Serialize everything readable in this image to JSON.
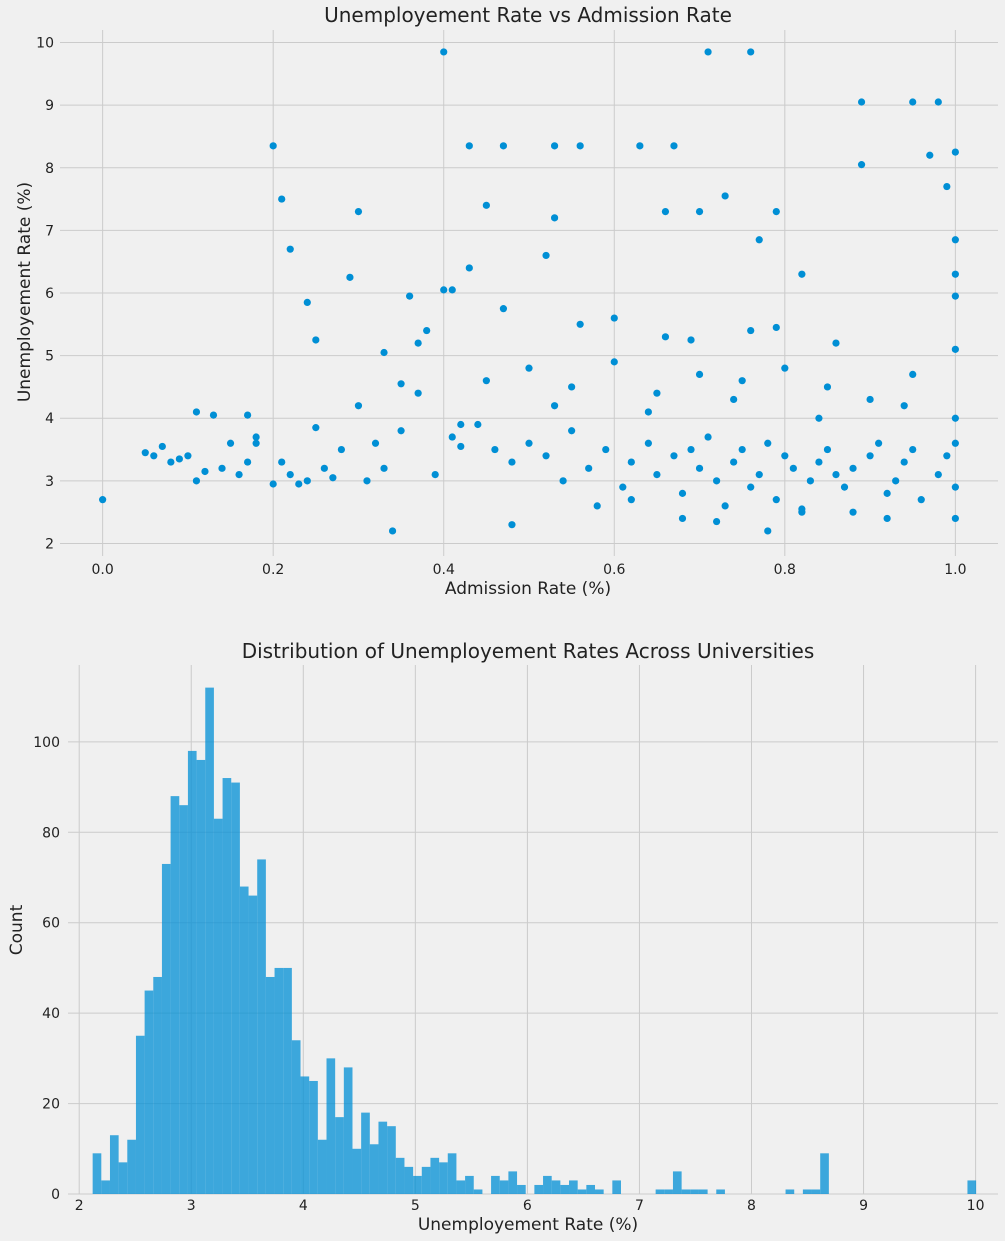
{
  "chart_data": [
    {
      "type": "scatter",
      "title": "Unemployement Rate vs Admission Rate",
      "xlabel": "Admission Rate (%)",
      "ylabel": "Unemployement Rate (%)",
      "xlim": [
        -0.05,
        1.05
      ],
      "ylim": [
        1.8,
        10.2
      ],
      "xticks": [
        0.0,
        0.2,
        0.4,
        0.6,
        0.8,
        1.0
      ],
      "xtick_labels": [
        "0.0",
        "0.2",
        "0.4",
        "0.6",
        "0.8",
        "1.0"
      ],
      "yticks": [
        2,
        3,
        4,
        5,
        6,
        7,
        8,
        9,
        10
      ],
      "ytick_labels": [
        "2",
        "3",
        "4",
        "5",
        "6",
        "7",
        "8",
        "9",
        "10"
      ],
      "grid": true,
      "color": "#008fd5",
      "x": [
        0.0,
        0.05,
        0.06,
        0.07,
        0.08,
        0.09,
        0.1,
        0.11,
        0.11,
        0.12,
        0.13,
        0.14,
        0.15,
        0.16,
        0.17,
        0.18,
        0.2,
        0.2,
        0.21,
        0.21,
        0.22,
        0.23,
        0.24,
        0.25,
        0.25,
        0.27,
        0.29,
        0.3,
        0.31,
        0.33,
        0.34,
        0.35,
        0.36,
        0.37,
        0.38,
        0.4,
        0.4,
        0.41,
        0.42,
        0.43,
        0.43,
        0.45,
        0.47,
        0.47,
        0.52,
        0.53,
        0.53,
        0.56,
        0.6,
        0.63,
        0.66,
        0.67,
        0.7,
        0.71,
        0.73,
        0.76,
        0.77,
        0.79,
        0.82,
        0.89,
        0.89,
        0.95,
        0.97,
        0.98,
        0.99,
        1.0,
        1.0,
        1.0,
        1.0,
        1.0,
        1.0,
        0.17,
        0.18,
        0.22,
        0.24,
        0.26,
        0.28,
        0.3,
        0.32,
        0.33,
        0.35,
        0.37,
        0.39,
        0.41,
        0.44,
        0.46,
        0.48,
        0.5,
        0.52,
        0.54,
        0.55,
        0.57,
        0.59,
        0.61,
        0.62,
        0.64,
        0.65,
        0.67,
        0.68,
        0.69,
        0.7,
        0.71,
        0.72,
        0.73,
        0.74,
        0.75,
        0.76,
        0.77,
        0.78,
        0.79,
        0.8,
        0.81,
        0.82,
        0.83,
        0.84,
        0.85,
        0.86,
        0.87,
        0.88,
        0.9,
        0.91,
        0.92,
        0.93,
        0.94,
        0.95,
        0.96,
        0.98,
        0.99,
        1.0,
        1.0,
        1.0,
        0.45,
        0.5,
        0.55,
        0.6,
        0.65,
        0.7,
        0.75,
        0.8,
        0.85,
        0.9,
        0.95,
        0.48,
        0.58,
        0.68,
        0.78,
        0.88,
        0.62,
        0.72,
        0.82,
        0.92,
        0.42,
        0.53,
        0.64,
        0.74,
        0.84,
        0.94,
        0.66,
        0.76,
        0.86,
        0.56,
        0.69,
        0.79
      ],
      "y": [
        2.7,
        3.45,
        3.4,
        3.55,
        3.3,
        3.35,
        3.4,
        4.1,
        3.0,
        3.15,
        4.05,
        3.2,
        3.6,
        3.1,
        4.05,
        3.6,
        2.95,
        8.35,
        7.5,
        3.3,
        6.7,
        2.95,
        5.85,
        3.85,
        5.25,
        3.05,
        6.25,
        7.3,
        3.0,
        5.05,
        2.2,
        4.55,
        5.95,
        5.2,
        5.4,
        9.85,
        6.05,
        6.05,
        3.55,
        8.35,
        6.4,
        7.4,
        8.35,
        5.75,
        6.6,
        8.35,
        7.2,
        8.35,
        5.6,
        8.35,
        7.3,
        8.35,
        7.3,
        9.85,
        7.55,
        9.85,
        6.85,
        7.3,
        6.3,
        9.05,
        8.05,
        9.05,
        8.2,
        9.05,
        7.7,
        8.25,
        6.85,
        6.3,
        5.95,
        5.1,
        2.4,
        3.3,
        3.7,
        3.1,
        3.0,
        3.2,
        3.5,
        4.2,
        3.6,
        3.2,
        3.8,
        4.4,
        3.1,
        3.7,
        3.9,
        3.5,
        3.3,
        3.6,
        3.4,
        3.0,
        3.8,
        3.2,
        3.5,
        2.9,
        3.3,
        3.6,
        3.1,
        3.4,
        2.8,
        3.5,
        3.2,
        3.7,
        3.0,
        2.6,
        3.3,
        3.5,
        2.9,
        3.1,
        3.6,
        2.7,
        3.4,
        3.2,
        2.5,
        3.0,
        3.3,
        3.5,
        3.1,
        2.9,
        3.2,
        3.4,
        3.6,
        2.8,
        3.0,
        3.3,
        3.5,
        2.7,
        3.1,
        3.4,
        3.6,
        4.0,
        2.9,
        4.6,
        4.8,
        4.5,
        4.9,
        4.4,
        4.7,
        4.6,
        4.8,
        4.5,
        4.3,
        4.7,
        2.3,
        2.6,
        2.4,
        2.2,
        2.5,
        2.7,
        2.35,
        2.55,
        2.4,
        3.9,
        4.2,
        4.1,
        4.3,
        4.0,
        4.2,
        5.3,
        5.4,
        5.2,
        5.5,
        5.25,
        5.45
      ]
    },
    {
      "type": "bar",
      "title": "Distribution of Unemployement Rates Across Universities",
      "xlabel": "Unemployement Rate (%)",
      "ylabel": "Count",
      "xlim": [
        1.9,
        10.2
      ],
      "ylim": [
        0,
        117
      ],
      "xticks": [
        2,
        3,
        4,
        5,
        6,
        7,
        8,
        9,
        10
      ],
      "xtick_labels": [
        "2",
        "3",
        "4",
        "5",
        "6",
        "7",
        "8",
        "9",
        "10"
      ],
      "yticks": [
        0,
        20,
        40,
        60,
        80,
        100
      ],
      "ytick_labels": [
        "0",
        "20",
        "40",
        "60",
        "80",
        "100"
      ],
      "grid": true,
      "color": "#008fd5",
      "bin_start": 2.12,
      "bin_width": 0.0773,
      "values": [
        9,
        3,
        13,
        7,
        12,
        35,
        45,
        48,
        73,
        88,
        86,
        98,
        96,
        112,
        83,
        92,
        91,
        68,
        66,
        74,
        48,
        50,
        50,
        34,
        26,
        25,
        12,
        30,
        17,
        28,
        10,
        18,
        11,
        16,
        15,
        8,
        6,
        4,
        6,
        8,
        7,
        9,
        3,
        4,
        1,
        0,
        4,
        3,
        5,
        2,
        0,
        2,
        4,
        3,
        2,
        3,
        1,
        2,
        1,
        0,
        3,
        0,
        0,
        0,
        0,
        1,
        1,
        5,
        1,
        1,
        1,
        0,
        1,
        0,
        0,
        0,
        0,
        0,
        0,
        0,
        1,
        0,
        1,
        1,
        9,
        0,
        0,
        0,
        0,
        0,
        0,
        0,
        0,
        0,
        0,
        0,
        0,
        0,
        0,
        0,
        0,
        3,
        0,
        0,
        0,
        0,
        0,
        0,
        0,
        0,
        0,
        0,
        0,
        0,
        3
      ]
    }
  ]
}
